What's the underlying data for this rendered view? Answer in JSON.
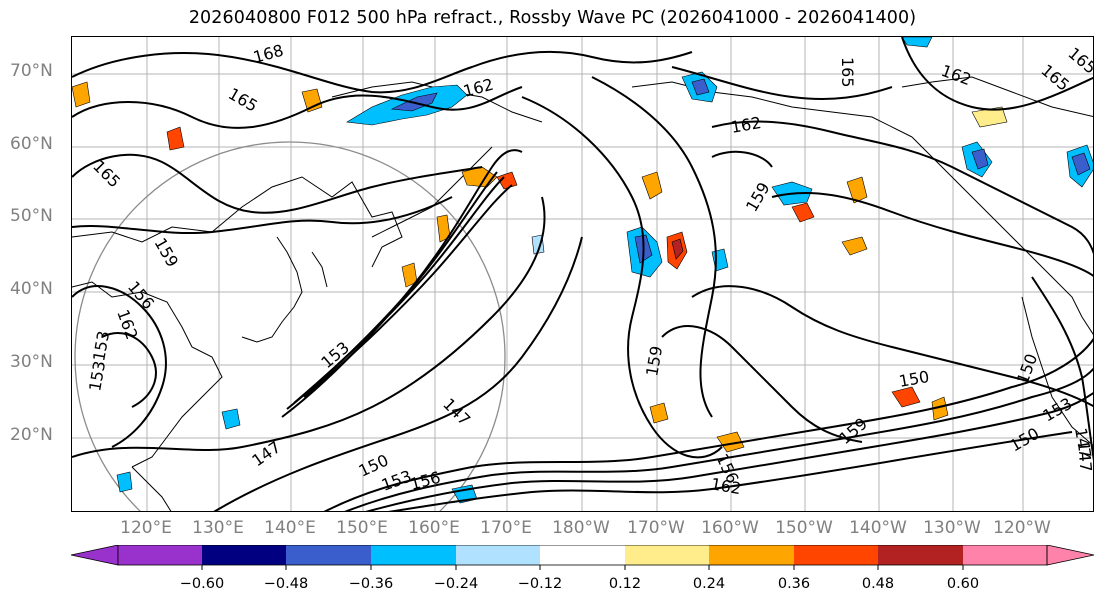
{
  "title": "2026040800 F012 500 hPa refract., Rossby Wave PC (2026041000 - 2026041400)",
  "lat_labels": [
    "70°N",
    "60°N",
    "50°N",
    "40°N",
    "30°N",
    "20°N"
  ],
  "lon_labels": [
    "120°E",
    "130°E",
    "140°E",
    "150°E",
    "160°E",
    "170°E",
    "180°W",
    "170°W",
    "160°W",
    "150°W",
    "140°W",
    "130°W",
    "120°W"
  ],
  "contour_labels": [
    "168",
    "165",
    "162",
    "165",
    "162",
    "162",
    "165",
    "159",
    "156",
    "153",
    "159",
    "153",
    "147",
    "150",
    "153",
    "156",
    "159",
    "150",
    "150",
    "153",
    "147",
    "156",
    "162",
    "147",
    "165",
    "162",
    "159",
    "153",
    "150",
    "147",
    "165"
  ],
  "colorbar": {
    "tick_labels": [
      "−0.60",
      "−0.48",
      "−0.36",
      "−0.24",
      "−0.12",
      "0.12",
      "0.24",
      "0.36",
      "0.48",
      "0.60"
    ],
    "colors": [
      "#9932cc",
      "#000080",
      "#3a5fcd",
      "#00bfff",
      "#b0e2ff",
      "#ffffff",
      "#ffec8b",
      "#ffa500",
      "#ff4500",
      "#b22222",
      "#ff82ab"
    ]
  }
}
